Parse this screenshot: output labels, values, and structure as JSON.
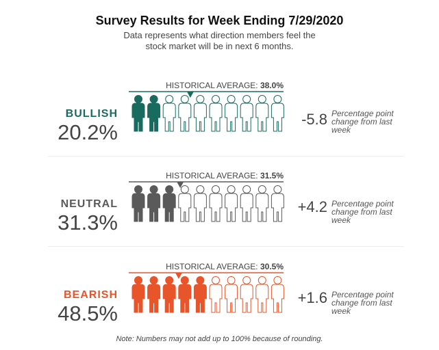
{
  "title": "Survey Results for Week Ending 7/29/2020",
  "subtitle": "Data represents what direction members feel the stock market will be in next 6 months.",
  "note": "Note: Numbers may not add up to 100% because of rounding.",
  "chart_data": {
    "type": "pictograph",
    "icons_total": 10,
    "rows": [
      {
        "label": "BULLISH",
        "percent": 20.2,
        "percent_text": "20.2%",
        "historical_label": "HISTORICAL AVERAGE:",
        "historical_average": 38.0,
        "historical_text": "38.0%",
        "change": -5.8,
        "change_text": "-5.8",
        "change_label": "Percentage point change from last week",
        "color": "#1a6b5f"
      },
      {
        "label": "NEUTRAL",
        "percent": 31.3,
        "percent_text": "31.3%",
        "historical_label": "HISTORICAL AVERAGE:",
        "historical_average": 31.5,
        "historical_text": "31.5%",
        "change": 4.2,
        "change_text": "+4.2",
        "change_label": "Percentage point change from last week",
        "color": "#5a5a5a"
      },
      {
        "label": "BEARISH",
        "percent": 48.5,
        "percent_text": "48.5%",
        "historical_label": "HISTORICAL AVERAGE:",
        "historical_average": 30.5,
        "historical_text": "30.5%",
        "change": 1.6,
        "change_text": "+1.6",
        "change_label": "Percentage point change from last week",
        "color": "#e8552b"
      }
    ]
  }
}
